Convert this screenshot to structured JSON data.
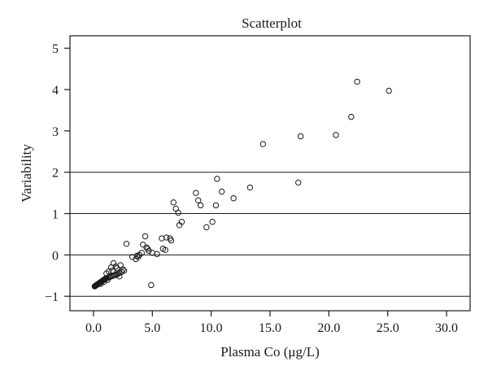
{
  "chart_data": {
    "type": "scatter",
    "title": "Scatterplot",
    "xlabel": "Plasma Co (μg/L)",
    "ylabel": "Variability",
    "xlim": [
      -2.0,
      32.0
    ],
    "ylim": [
      -1.35,
      5.3
    ],
    "x_ticks": [
      0.0,
      5.0,
      10.0,
      15.0,
      20.0,
      25.0,
      30.0
    ],
    "x_tick_labels": [
      "0.0",
      "5.0",
      "10.0",
      "15.0",
      "20.0",
      "25.0",
      "30.0"
    ],
    "y_ticks": [
      -1,
      0,
      1,
      2,
      3,
      4,
      5
    ],
    "y_tick_labels": [
      "−1",
      "0",
      "1",
      "2",
      "3",
      "4",
      "5"
    ],
    "reference_lines_y": [
      -1,
      0,
      1,
      2
    ],
    "grid": false,
    "marker": "open-circle",
    "points": [
      [
        0.1,
        -0.76
      ],
      [
        0.15,
        -0.75
      ],
      [
        0.2,
        -0.74
      ],
      [
        0.25,
        -0.73
      ],
      [
        0.3,
        -0.72
      ],
      [
        0.35,
        -0.71
      ],
      [
        0.4,
        -0.7
      ],
      [
        0.45,
        -0.69
      ],
      [
        0.5,
        -0.68
      ],
      [
        0.55,
        -0.67
      ],
      [
        0.6,
        -0.66
      ],
      [
        0.65,
        -0.65
      ],
      [
        0.7,
        -0.64
      ],
      [
        0.75,
        -0.63
      ],
      [
        0.8,
        -0.62
      ],
      [
        0.85,
        -0.61
      ],
      [
        0.9,
        -0.6
      ],
      [
        0.95,
        -0.59
      ],
      [
        1.0,
        -0.58
      ],
      [
        1.05,
        -0.57
      ],
      [
        1.1,
        -0.56
      ],
      [
        1.2,
        -0.55
      ],
      [
        1.3,
        -0.54
      ],
      [
        1.4,
        -0.53
      ],
      [
        1.5,
        -0.52
      ],
      [
        1.6,
        -0.51
      ],
      [
        1.7,
        -0.5
      ],
      [
        1.8,
        -0.49
      ],
      [
        1.9,
        -0.48
      ],
      [
        2.0,
        -0.47
      ],
      [
        2.1,
        -0.45
      ],
      [
        2.2,
        -0.43
      ],
      [
        2.4,
        -0.41
      ],
      [
        2.6,
        -0.38
      ],
      [
        0.6,
        -0.7
      ],
      [
        0.9,
        -0.65
      ],
      [
        1.2,
        -0.6
      ],
      [
        1.1,
        -0.45
      ],
      [
        1.3,
        -0.4
      ],
      [
        1.5,
        -0.3
      ],
      [
        1.7,
        -0.2
      ],
      [
        2.3,
        -0.25
      ],
      [
        2.5,
        -0.35
      ],
      [
        1.9,
        -0.28
      ],
      [
        1.6,
        -0.38
      ],
      [
        2.2,
        -0.52
      ],
      [
        2.0,
        -0.32
      ],
      [
        2.8,
        0.27
      ],
      [
        3.3,
        -0.05
      ],
      [
        3.6,
        -0.1
      ],
      [
        3.8,
        -0.05
      ],
      [
        3.9,
        0.0
      ],
      [
        4.1,
        0.05
      ],
      [
        3.7,
        -0.02
      ],
      [
        4.2,
        0.25
      ],
      [
        4.4,
        0.45
      ],
      [
        4.5,
        0.18
      ],
      [
        4.6,
        0.15
      ],
      [
        4.7,
        0.1
      ],
      [
        5.0,
        0.05
      ],
      [
        5.4,
        0.02
      ],
      [
        5.8,
        0.4
      ],
      [
        5.9,
        0.15
      ],
      [
        6.1,
        0.12
      ],
      [
        6.2,
        0.42
      ],
      [
        6.5,
        0.4
      ],
      [
        6.6,
        0.35
      ],
      [
        6.8,
        1.27
      ],
      [
        7.0,
        1.12
      ],
      [
        7.2,
        1.02
      ],
      [
        7.3,
        0.72
      ],
      [
        7.5,
        0.8
      ],
      [
        4.9,
        -0.73
      ],
      [
        8.7,
        1.5
      ],
      [
        8.9,
        1.32
      ],
      [
        9.1,
        1.2
      ],
      [
        9.6,
        0.67
      ],
      [
        10.1,
        0.8
      ],
      [
        10.4,
        1.2
      ],
      [
        10.5,
        1.84
      ],
      [
        10.9,
        1.53
      ],
      [
        11.9,
        1.37
      ],
      [
        13.3,
        1.63
      ],
      [
        14.4,
        2.68
      ],
      [
        17.4,
        1.75
      ],
      [
        17.6,
        2.87
      ],
      [
        20.6,
        2.9
      ],
      [
        21.9,
        3.34
      ],
      [
        22.4,
        4.19
      ],
      [
        25.1,
        3.97
      ]
    ]
  }
}
